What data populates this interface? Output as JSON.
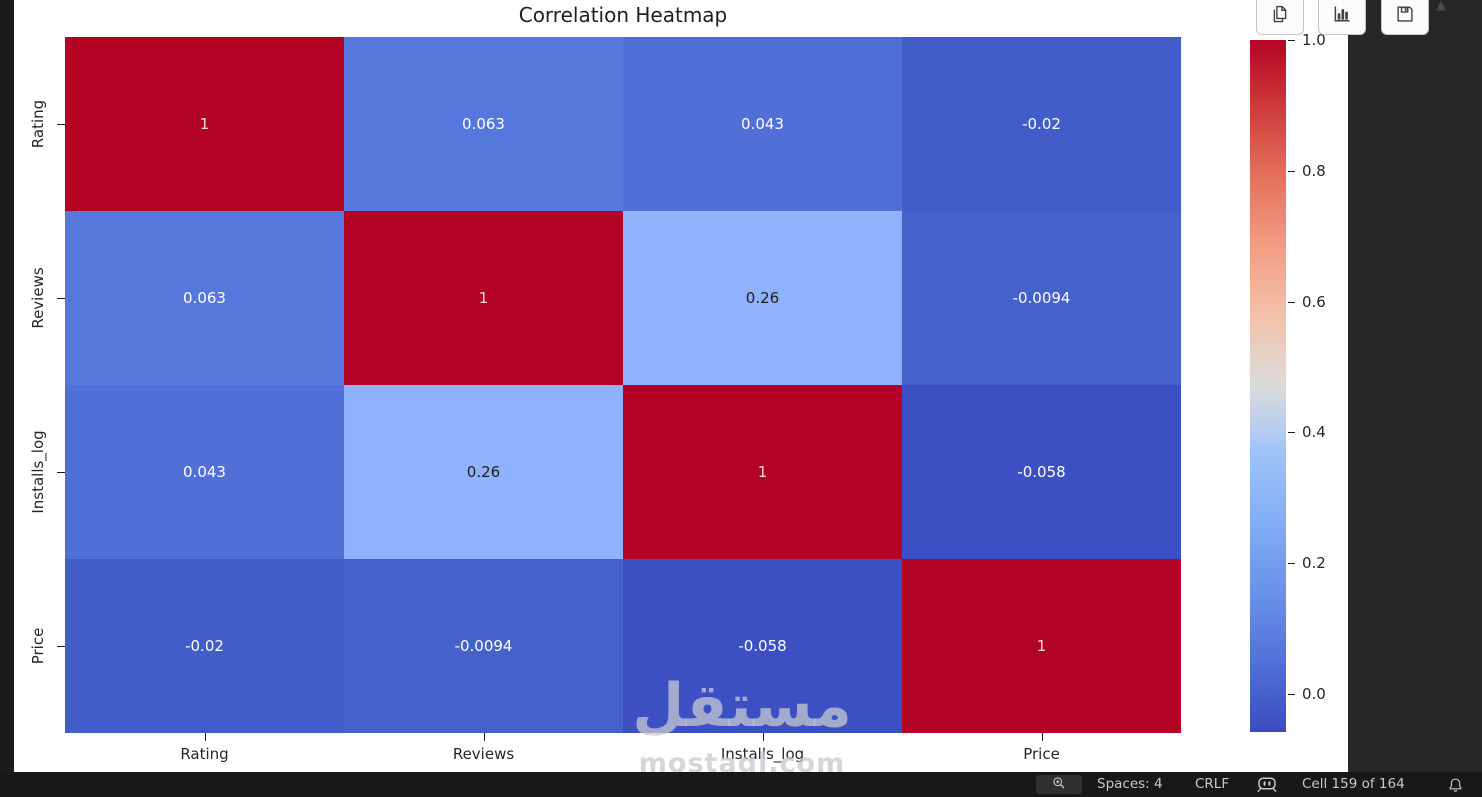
{
  "figure": {
    "title": "Correlation Heatmap"
  },
  "chart_data": {
    "type": "heatmap",
    "title": "Correlation Heatmap",
    "categories": [
      "Rating",
      "Reviews",
      "Installs_log",
      "Price"
    ],
    "matrix": [
      [
        1,
        0.063,
        0.043,
        -0.02
      ],
      [
        0.063,
        1,
        0.26,
        -0.0094
      ],
      [
        0.043,
        0.26,
        1,
        -0.058
      ],
      [
        -0.02,
        -0.0094,
        -0.058,
        1
      ]
    ],
    "cell_labels": [
      [
        "1",
        "0.063",
        "0.043",
        "-0.02"
      ],
      [
        "0.063",
        "1",
        "0.26",
        "-0.0094"
      ],
      [
        "0.043",
        "0.26",
        "1",
        "-0.058"
      ],
      [
        "-0.02",
        "-0.0094",
        "-0.058",
        "1"
      ]
    ],
    "cell_colors": [
      [
        "#b40426",
        "#5677db",
        "#5170d7",
        "#425dc8"
      ],
      [
        "#5677db",
        "#b40426",
        "#90b2fc",
        "#4562cb"
      ],
      [
        "#5170d7",
        "#90b2fc",
        "#b40426",
        "#3d50c3"
      ],
      [
        "#425dc8",
        "#4562cb",
        "#3d50c3",
        "#b40426"
      ]
    ],
    "cell_text_colors": [
      [
        "#f6e0cd",
        "#ffffff",
        "#ffffff",
        "#ffffff"
      ],
      [
        "#ffffff",
        "#f6e0cd",
        "#1c1c1c",
        "#ffffff"
      ],
      [
        "#ffffff",
        "#1c1c1c",
        "#f6e0cd",
        "#ffffff"
      ],
      [
        "#ffffff",
        "#ffffff",
        "#ffffff",
        "#f6e0cd"
      ]
    ],
    "colormap": "coolwarm",
    "vmin": -0.058,
    "vmax": 1.0,
    "colorbar_ticks": [
      {
        "label": "1.0",
        "value": 1.0
      },
      {
        "label": "0.8",
        "value": 0.8
      },
      {
        "label": "0.6",
        "value": 0.6
      },
      {
        "label": "0.4",
        "value": 0.4
      },
      {
        "label": "0.2",
        "value": 0.2
      },
      {
        "label": "0.0",
        "value": 0.0
      }
    ],
    "legend_position": "right-colorbar",
    "grid": false
  },
  "output_toolbar": {
    "buttons": [
      {
        "icon": "copy-icon",
        "action": "copy-output"
      },
      {
        "icon": "bar-chart-icon",
        "action": "open-plot-viewer"
      },
      {
        "icon": "save-icon",
        "action": "save-output"
      }
    ]
  },
  "scrollbar": {
    "up_arrow_glyph": "▲"
  },
  "watermark": {
    "arabic": "مستقل",
    "latin": "mostaql.com"
  },
  "status_bar": {
    "spaces": "Spaces: 4",
    "eol": "CRLF",
    "cell_indicator": "Cell 159 of 164"
  },
  "colors": {
    "heatmap_max": "#b40426",
    "heatmap_min": "#3b4cc0",
    "status_bar_bg": "#181818",
    "status_bar_fg": "#c8c8c8",
    "output_bg": "#ffffff"
  }
}
